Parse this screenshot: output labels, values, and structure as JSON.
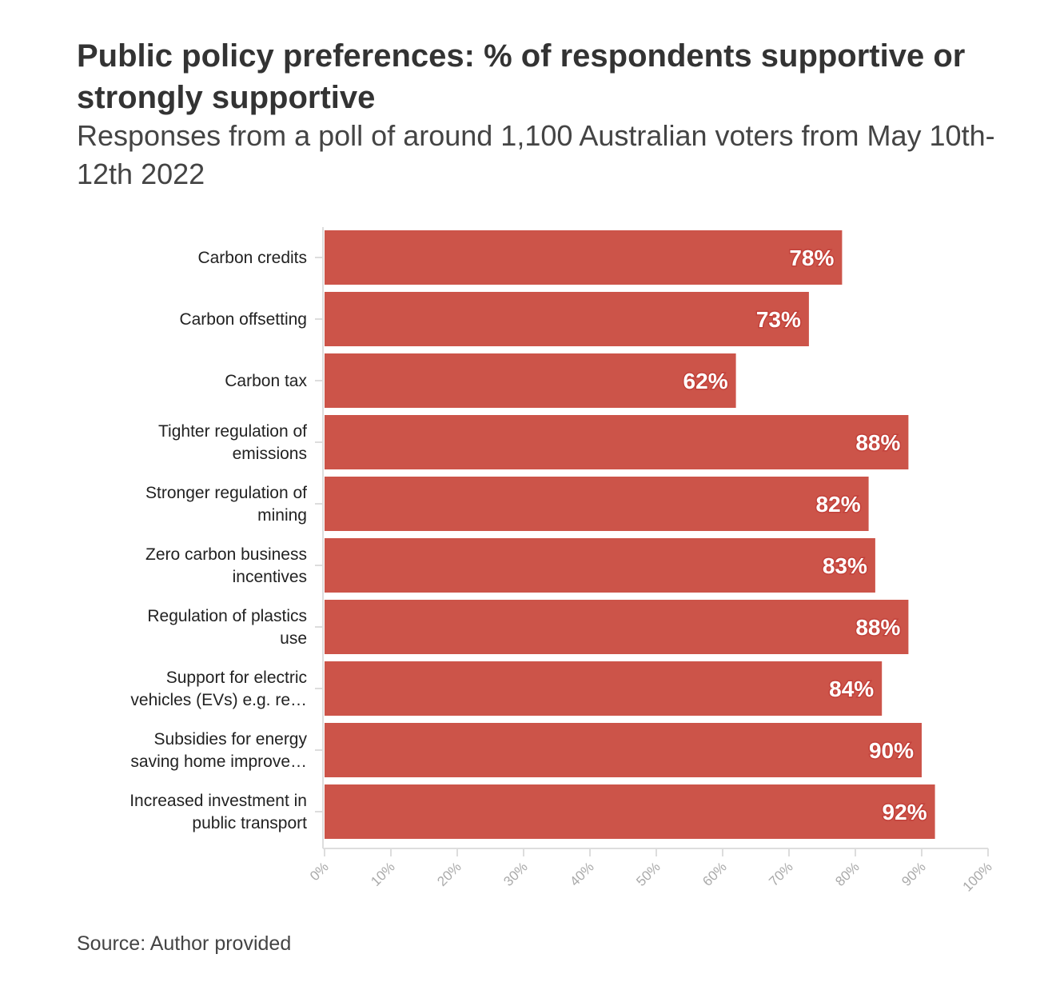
{
  "title": "Public policy preferences: % of respondents supportive or strongly supportive",
  "subtitle": "Responses from a poll of around 1,100 Australian voters from May 10th-12th 2022",
  "source": "Source: Author provided",
  "colors": {
    "bar": "#cc5449",
    "axis": "#dddddd",
    "tick_text": "#aaaaaa"
  },
  "chart_data": {
    "type": "bar",
    "orientation": "horizontal",
    "categories": [
      [
        "Carbon credits"
      ],
      [
        "Carbon offsetting"
      ],
      [
        "Carbon tax"
      ],
      [
        "Tighter regulation of",
        "emissions"
      ],
      [
        "Stronger regulation of",
        "mining"
      ],
      [
        "Zero carbon business",
        "incentives"
      ],
      [
        "Regulation of plastics",
        "use"
      ],
      [
        "Support for electric",
        "vehicles (EVs) e.g. re…"
      ],
      [
        "Subsidies for energy",
        "saving home improve…"
      ],
      [
        "Increased investment in",
        "public transport"
      ]
    ],
    "values": [
      78,
      73,
      62,
      88,
      82,
      83,
      88,
      84,
      90,
      92
    ],
    "data_labels": [
      "78%",
      "73%",
      "62%",
      "88%",
      "82%",
      "83%",
      "88%",
      "84%",
      "90%",
      "92%"
    ],
    "xlim": [
      0,
      100
    ],
    "x_ticks": [
      "0%",
      "10%",
      "20%",
      "30%",
      "40%",
      "50%",
      "60%",
      "70%",
      "80%",
      "90%",
      "100%"
    ],
    "grid": false,
    "legend": "none"
  }
}
